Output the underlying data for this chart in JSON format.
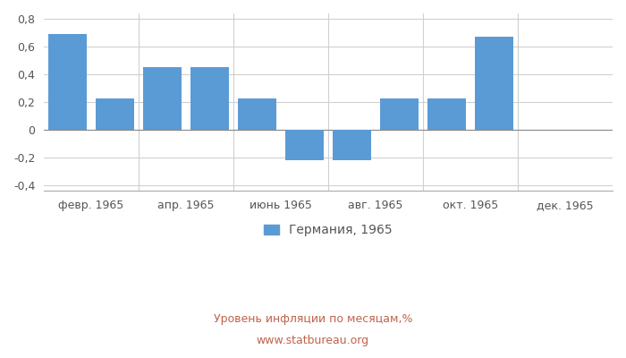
{
  "months": [
    1,
    2,
    3,
    4,
    5,
    6,
    7,
    8,
    9,
    10,
    11,
    12
  ],
  "values": [
    0.69,
    0.23,
    0.45,
    0.45,
    0.23,
    -0.22,
    -0.22,
    0.23,
    0.23,
    0.67,
    0.0,
    0.0
  ],
  "tick_positions": [
    1.5,
    3.5,
    5.5,
    7.5,
    9.5,
    11.5
  ],
  "tick_labels": [
    "февр. 1965",
    "апр. 1965",
    "июнь 1965",
    "авг. 1965",
    "окт. 1965",
    "дек. 1965"
  ],
  "bar_color": "#5b9bd5",
  "ylim": [
    -0.44,
    0.84
  ],
  "yticks": [
    -0.4,
    -0.2,
    0.0,
    0.2,
    0.4,
    0.6,
    0.8
  ],
  "ytick_labels": [
    "-0,4",
    "-0,2",
    "0",
    "0,2",
    "0,4",
    "0,6",
    "0,8"
  ],
  "legend_label": "Германия, 1965",
  "xlabel": "Уровень инфляции по месяцам,%",
  "watermark": "www.statbureau.org",
  "background_color": "#ffffff",
  "grid_color": "#d0d0d0",
  "bar_width": 0.8
}
